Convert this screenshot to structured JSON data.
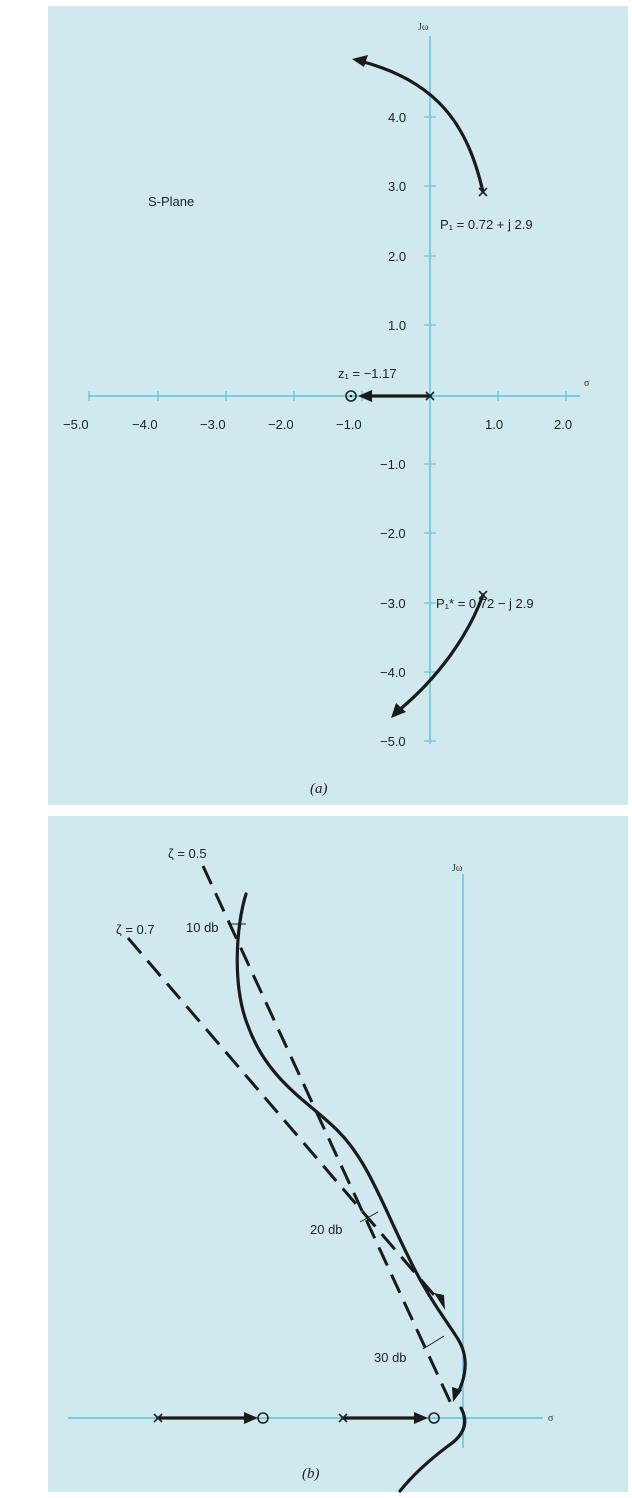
{
  "panel_a": {
    "caption": "(a)",
    "plane_label": "S-Plane",
    "jw_label": "Jω",
    "sigma_label": "σ",
    "real_ticks": [
      "−5.0",
      "−4.0",
      "−3.0",
      "−2.0",
      "−1.0",
      "1.0",
      "2.0"
    ],
    "imag_ticks": [
      "4.0",
      "3.0",
      "2.0",
      "1.0",
      "−1.0",
      "−2.0",
      "−3.0",
      "−4.0",
      "−5.0"
    ],
    "zero_label": "z₁ = −1.17",
    "pole_label": "P₁ = 0.72 + j 2.9",
    "conj_pole_label": "P₁* = 0.72 − j 2.9"
  },
  "panel_b": {
    "caption": "(b)",
    "jw_label": "Jω",
    "sigma_label": "σ",
    "zeta_05_label": "ζ = 0.5",
    "zeta_07_label": "ζ = 0.7",
    "gain_10": "10 db",
    "gain_20": "20 db",
    "gain_30": "30 db"
  }
}
